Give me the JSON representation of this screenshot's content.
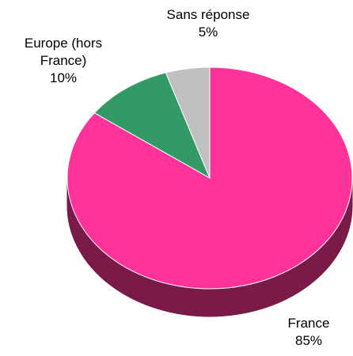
{
  "chart_data": {
    "type": "pie",
    "categories": [
      "France",
      "Europe (hors France)",
      "Sans réponse"
    ],
    "values": [
      85,
      10,
      5
    ],
    "value_labels": [
      "85%",
      "10%",
      "5%"
    ],
    "colors": [
      "#ff3399",
      "#339966",
      "#c0c0c0"
    ],
    "side_color": "#7a1a48"
  }
}
